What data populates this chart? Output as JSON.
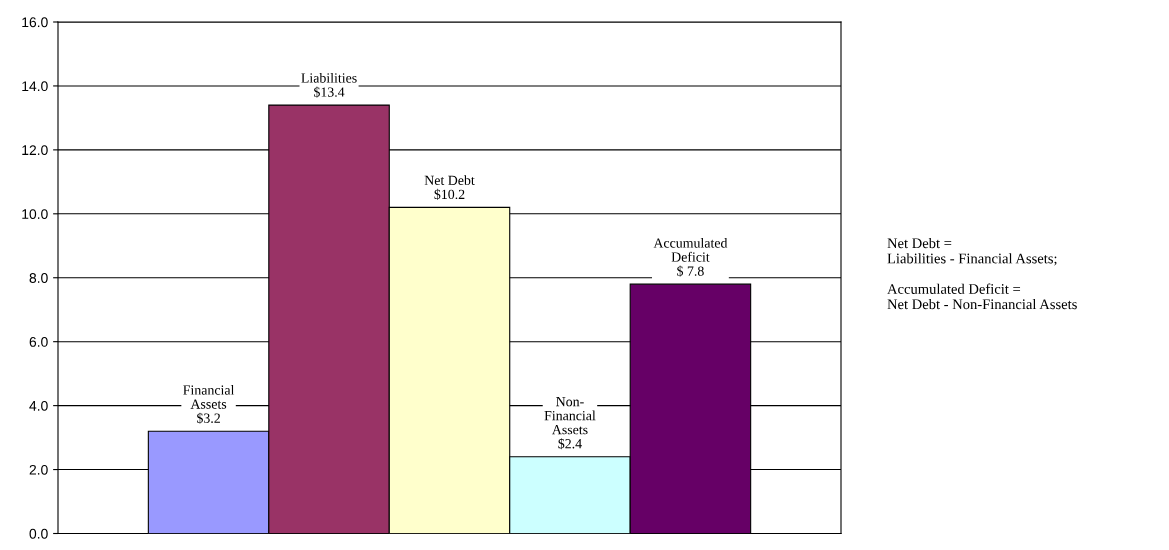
{
  "chart_data": {
    "type": "bar",
    "categories": [
      null,
      null,
      null,
      null,
      null
    ],
    "values": [
      3.2,
      13.4,
      10.2,
      2.4,
      7.8
    ],
    "colors": [
      "#9999ff",
      "#993366",
      "#ffffcc",
      "#ccffff",
      "#660066"
    ],
    "value_labels": [
      "Financial\nAssets\n$3.2",
      "Liabilities\n$13.4",
      "Net Debt\n$10.2",
      "Non-\nFinancial\nAssets\n$2.4",
      "Accumulated\nDeficit\n$ 7.8"
    ],
    "ylim": [
      0,
      16
    ],
    "yticks": [
      {
        "value": 0,
        "label": "0.0"
      },
      {
        "value": 2,
        "label": "2.0"
      },
      {
        "value": 4,
        "label": "4.0"
      },
      {
        "value": 6,
        "label": "6.0"
      },
      {
        "value": 8,
        "label": "8.0"
      },
      {
        "value": 10,
        "label": "10.0"
      },
      {
        "value": 12,
        "label": "12.0"
      },
      {
        "value": 14,
        "label": "14.0"
      },
      {
        "value": 16,
        "label": "16.0"
      }
    ],
    "grid": "y",
    "tick_labels": "y",
    "annotations": [
      "Net Debt =\nLiabilities - Financial Assets;\n\nAccumulated Deficit =\nNet Debt - Non-Financial Assets"
    ]
  }
}
